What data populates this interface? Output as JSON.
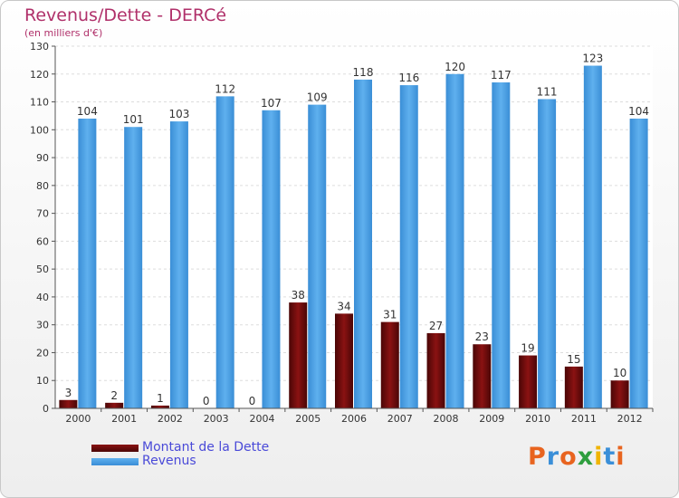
{
  "title": "Revenus/Dette - DERCé",
  "subtitle": "(en milliers d'€)",
  "brand": {
    "text": "Proxiti",
    "colors": [
      "#e8641f",
      "#3a8fd8",
      "#e8641f",
      "#2e9e3e",
      "#f0b400",
      "#3a8fd8",
      "#e8641f"
    ]
  },
  "legend": {
    "items": [
      {
        "label": "Montant de la Dette",
        "color": "#6e0a0a"
      },
      {
        "label": "Revenus",
        "color": "#4aa0e6"
      }
    ]
  },
  "chart_data": {
    "type": "bar",
    "categories": [
      "2000",
      "2001",
      "2002",
      "2003",
      "2004",
      "2005",
      "2006",
      "2007",
      "2008",
      "2009",
      "2010",
      "2011",
      "2012"
    ],
    "series": [
      {
        "name": "Montant de la Dette",
        "color": "#6e0a0a",
        "values": [
          3,
          2,
          1,
          0,
          0,
          38,
          34,
          31,
          27,
          23,
          19,
          15,
          10
        ]
      },
      {
        "name": "Revenus",
        "color": "#4aa0e6",
        "values": [
          104,
          101,
          103,
          112,
          107,
          109,
          118,
          116,
          120,
          117,
          111,
          123,
          104
        ]
      }
    ],
    "ylim": [
      0,
      130
    ],
    "yticks": [
      0,
      10,
      20,
      30,
      40,
      50,
      60,
      70,
      80,
      90,
      100,
      110,
      120,
      130
    ],
    "grid": true,
    "legend_position": "bottom-left"
  }
}
